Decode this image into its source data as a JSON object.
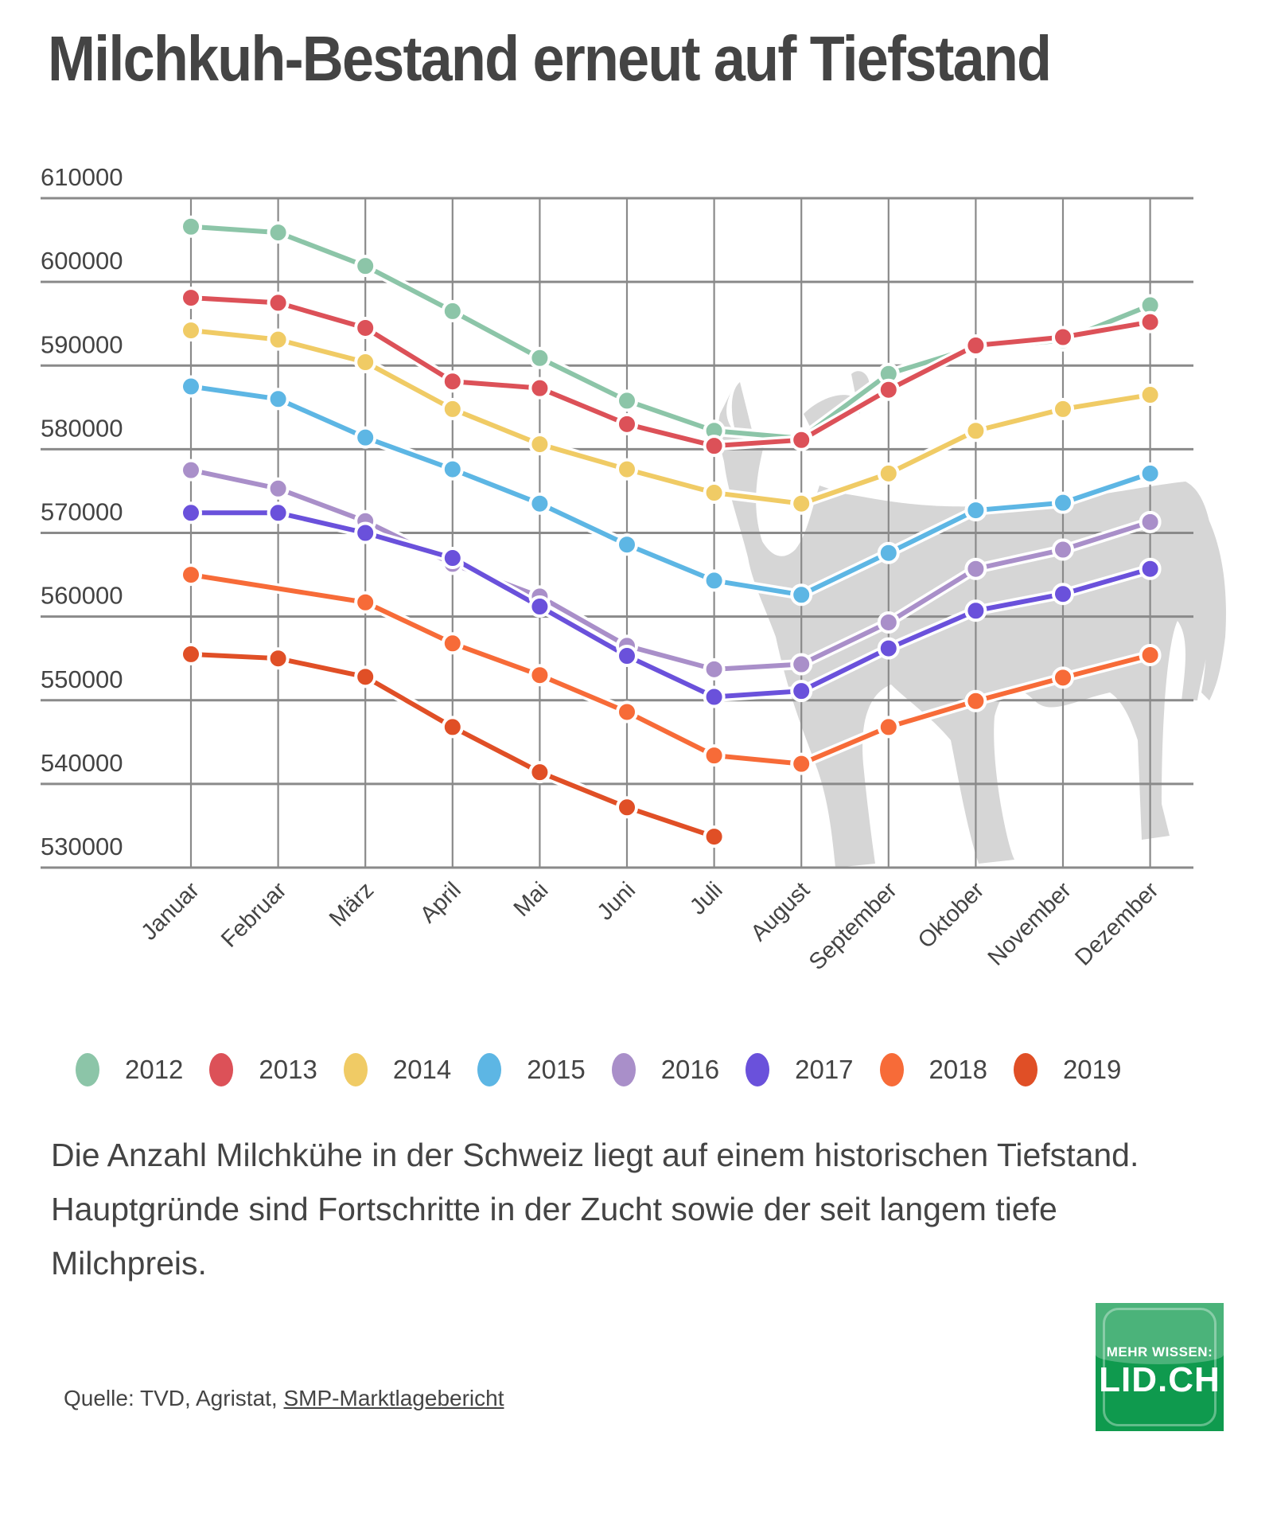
{
  "title": "Milchkuh-Bestand erneut auf Tiefstand",
  "description": "Die Anzahl Milchkühe in der Schweiz liegt auf einem historischen Tiefstand. Hauptgründe sind Fortschritte in der Zucht sowie der seit langem tiefe Milchpreis.",
  "source": {
    "prefix": "Quelle: TVD, Agristat, ",
    "link_label": "SMP-Marktlagebericht"
  },
  "logo": {
    "top_text": "MEHR WISSEN:",
    "main_text": "LID.CH",
    "color": "#0f9a4e"
  },
  "chart_data": {
    "type": "line",
    "title": "Milchkuh-Bestand erneut auf Tiefstand",
    "xlabel": "",
    "ylabel": "",
    "ylim": [
      530000,
      610000
    ],
    "yticks": [
      610000,
      600000,
      590000,
      580000,
      570000,
      560000,
      550000,
      540000,
      530000
    ],
    "ytick_labels": [
      "610000",
      "600000",
      "590000",
      "580000",
      "570000",
      "560000",
      "550000",
      "540000",
      "530000"
    ],
    "grid": true,
    "legend_position": "bottom",
    "categories": [
      "Januar",
      "Februar",
      "März",
      "April",
      "Mai",
      "Juni",
      "Juli",
      "August",
      "September",
      "Oktober",
      "November",
      "Dezember"
    ],
    "series": [
      {
        "name": "2012",
        "color": "#8cc5a8",
        "values": [
          606600,
          605900,
          601900,
          596500,
          590900,
          585800,
          582200,
          581300,
          589000,
          592200,
          593000,
          597200
        ]
      },
      {
        "name": "2013",
        "color": "#dc5158",
        "values": [
          598100,
          597500,
          594500,
          588100,
          587300,
          583000,
          580400,
          581100,
          587100,
          592400,
          593400,
          595200
        ]
      },
      {
        "name": "2014",
        "color": "#f0cb65",
        "values": [
          594200,
          593100,
          590400,
          584800,
          580600,
          577600,
          574800,
          573500,
          577100,
          582200,
          584800,
          586500
        ]
      },
      {
        "name": "2015",
        "color": "#5db6e4",
        "values": [
          587500,
          586000,
          581400,
          577600,
          573500,
          568600,
          564300,
          562600,
          567600,
          572700,
          573600,
          577100
        ]
      },
      {
        "name": "2016",
        "color": "#a98fc9",
        "values": [
          577500,
          575300,
          571400,
          566300,
          562400,
          556500,
          553700,
          554300,
          559300,
          565700,
          568000,
          571300
        ]
      },
      {
        "name": "2017",
        "color": "#6a51db",
        "values": [
          572400,
          572400,
          570000,
          567000,
          561200,
          555300,
          550400,
          551100,
          556200,
          560700,
          562700,
          565700
        ]
      },
      {
        "name": "2018",
        "color": "#f76b38",
        "values": [
          565000,
          null,
          561700,
          556800,
          553000,
          548600,
          543400,
          542400,
          546800,
          549900,
          552700,
          555400
        ],
        "line_through_missing": true
      },
      {
        "name": "2019",
        "color": "#e04f26",
        "values": [
          555500,
          555000,
          552800,
          546800,
          541400,
          537200,
          533700,
          null,
          null,
          null,
          null,
          null
        ]
      }
    ]
  }
}
